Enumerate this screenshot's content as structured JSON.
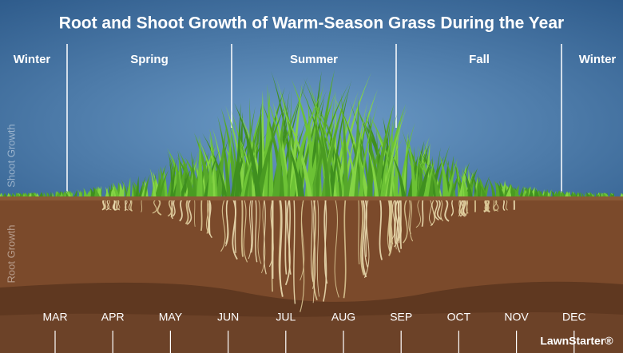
{
  "title": "Root and Shoot Growth of Warm-Season Grass During the Year",
  "seasons": [
    "Winter",
    "Spring",
    "Summer",
    "Fall",
    "Winter"
  ],
  "axis_labels": {
    "shoot": "Shoot Growth",
    "root": "Root Growth"
  },
  "months": [
    "MAR",
    "APR",
    "MAY",
    "JUN",
    "JUL",
    "AUG",
    "SEP",
    "OCT",
    "NOV",
    "DEC"
  ],
  "brand": "LawnStarter®"
}
